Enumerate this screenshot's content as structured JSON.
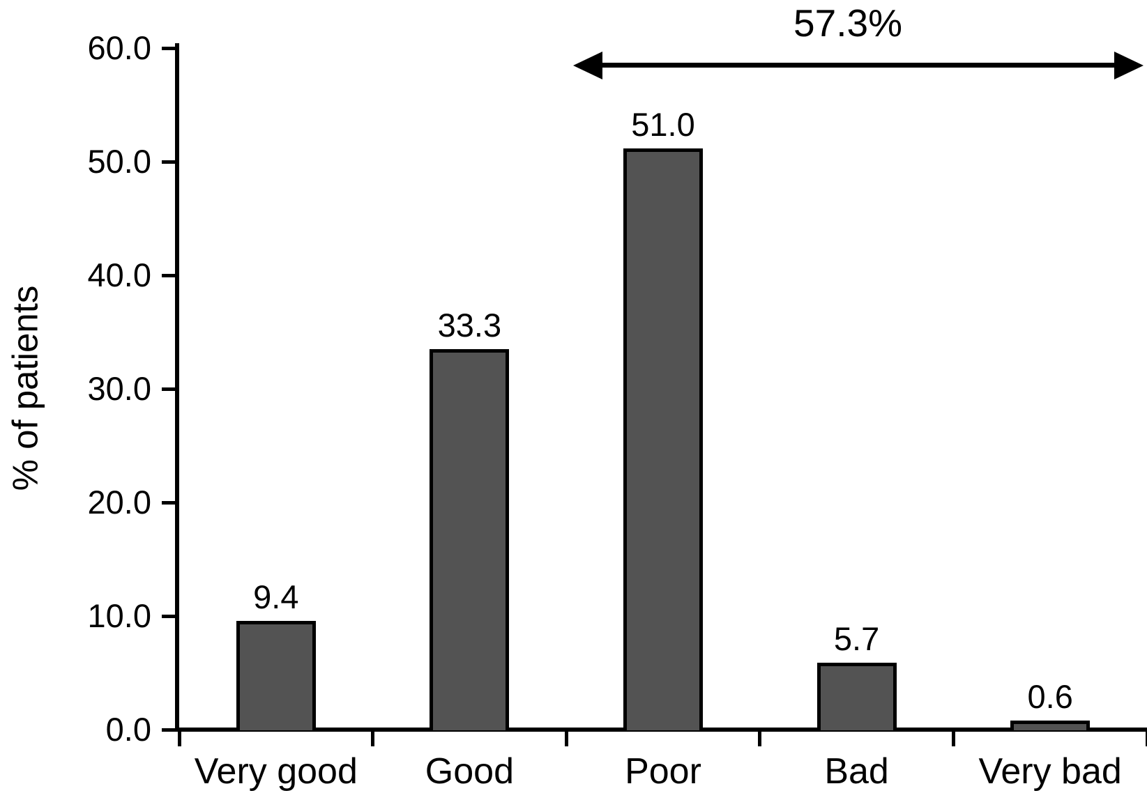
{
  "chart_data": {
    "type": "bar",
    "title": "",
    "categories": [
      "Very good",
      "Good",
      "Poor",
      "Bad",
      "Very bad"
    ],
    "values": [
      9.4,
      33.3,
      51.0,
      5.7,
      0.6
    ],
    "bar_labels": [
      "9.4",
      "33.3",
      "51.0",
      "5.7",
      "0.6"
    ],
    "ylabel": "% of patients",
    "xlabel": "",
    "ylim": [
      0,
      60
    ],
    "ytick_labels": [
      "0.0",
      "10.0",
      "20.0",
      "30.0",
      "40.0",
      "50.0",
      "60.0"
    ],
    "ytick_values": [
      0,
      10,
      20,
      30,
      40,
      50,
      60
    ],
    "grid": false,
    "legend": null,
    "annotation": {
      "text": "57.3%",
      "type": "double-headed-arrow",
      "spans_categories": [
        "Poor",
        "Bad",
        "Very bad"
      ]
    },
    "bar_fill_color": "#535353",
    "bar_border_color": "#000000",
    "axis_color": "#000000",
    "text_color": "#000000",
    "background_color": "#ffffff"
  }
}
